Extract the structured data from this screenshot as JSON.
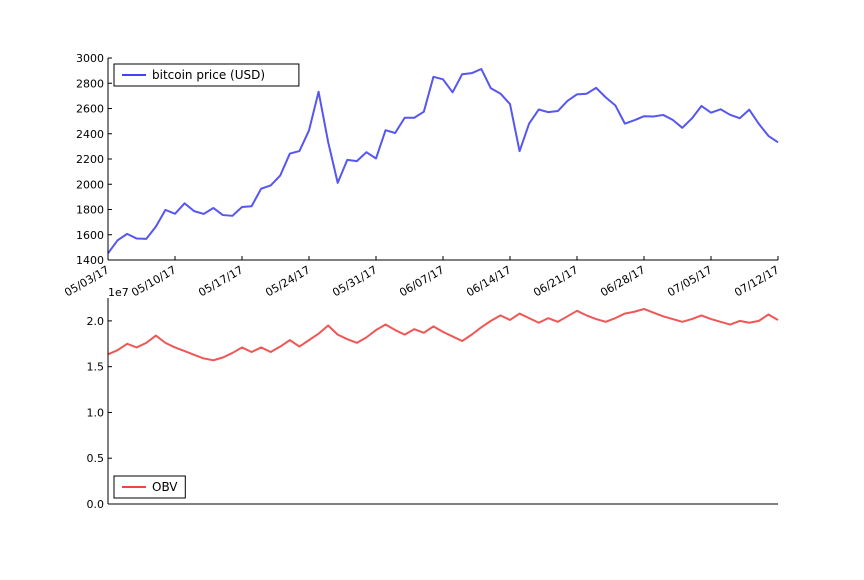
{
  "chart_data": [
    {
      "type": "line",
      "title": "",
      "xlabel": "",
      "ylabel": "",
      "ylim": [
        1400,
        3000
      ],
      "yticks": [
        1400,
        1600,
        1800,
        2000,
        2200,
        2400,
        2600,
        2800,
        3000
      ],
      "x_start": "2017-05-03",
      "x_end": "2017-07-12",
      "xtick_labels": [
        "05/03/17",
        "05/10/17",
        "05/17/17",
        "05/24/17",
        "05/31/17",
        "06/07/17",
        "06/14/17",
        "06/21/17",
        "06/28/17",
        "07/05/17",
        "07/12/17"
      ],
      "grid": false,
      "legend_position": "upper left",
      "series": [
        {
          "name": "bitcoin price (USD)",
          "color": "#4444ee",
          "values": [
            1453,
            1556,
            1607,
            1570,
            1567,
            1664,
            1797,
            1766,
            1849,
            1787,
            1765,
            1812,
            1756,
            1750,
            1820,
            1826,
            1965,
            1991,
            2070,
            2243,
            2263,
            2426,
            2733,
            2335,
            2011,
            2193,
            2183,
            2254,
            2204,
            2428,
            2406,
            2527,
            2527,
            2575,
            2851,
            2831,
            2728,
            2871,
            2880,
            2913,
            2760,
            2718,
            2635,
            2262,
            2481,
            2592,
            2571,
            2580,
            2660,
            2712,
            2717,
            2764,
            2688,
            2625,
            2480,
            2507,
            2539,
            2537,
            2549,
            2510,
            2447,
            2521,
            2620,
            2567,
            2594,
            2550,
            2523,
            2591,
            2478,
            2383,
            2332
          ]
        }
      ]
    },
    {
      "type": "line",
      "title": "",
      "xlabel": "",
      "ylabel": "",
      "offset_label": "1e7",
      "ylim": [
        0,
        22500000
      ],
      "yticks": [
        0,
        5000000,
        10000000,
        15000000,
        20000000
      ],
      "ytick_labels": [
        "0.0",
        "0.5",
        "1.0",
        "1.5",
        "2.0"
      ],
      "grid": false,
      "legend_position": "lower left",
      "series": [
        {
          "name": "OBV",
          "color": "#ee4444",
          "values": [
            16350000,
            16800000,
            17500000,
            17100000,
            17600000,
            18400000,
            17600000,
            17100000,
            16700000,
            16300000,
            15900000,
            15700000,
            16000000,
            16500000,
            17100000,
            16600000,
            17100000,
            16600000,
            17200000,
            17900000,
            17200000,
            17900000,
            18600000,
            19500000,
            18500000,
            18000000,
            17600000,
            18200000,
            19000000,
            19600000,
            19000000,
            18500000,
            19100000,
            18700000,
            19400000,
            18800000,
            18300000,
            17800000,
            18500000,
            19300000,
            20000000,
            20600000,
            20100000,
            20800000,
            20300000,
            19800000,
            20300000,
            19900000,
            20500000,
            21100000,
            20600000,
            20200000,
            19900000,
            20300000,
            20800000,
            21000000,
            21300000,
            20900000,
            20500000,
            20200000,
            19900000,
            20200000,
            20600000,
            20200000,
            19900000,
            19600000,
            20000000,
            19800000,
            20000000,
            20700000,
            20100000
          ]
        }
      ]
    }
  ]
}
